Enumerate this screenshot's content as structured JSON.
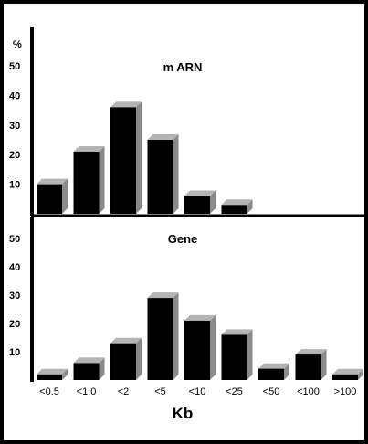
{
  "chart_data": [
    {
      "type": "bar",
      "title": "m ARN",
      "ylabel": "%",
      "ylim": [
        0,
        60
      ],
      "yticks": [
        10,
        20,
        30,
        40,
        50
      ],
      "categories": [
        "<0.5",
        "<1.0",
        "<2",
        "<5",
        "<10",
        "<25",
        "<50",
        "<100",
        ">100"
      ],
      "values": [
        10,
        21,
        36,
        25,
        6,
        3,
        0,
        0,
        0
      ]
    },
    {
      "type": "bar",
      "title": "Gene",
      "ylabel": "",
      "ylim": [
        0,
        60
      ],
      "yticks": [
        10,
        20,
        30,
        40,
        50
      ],
      "categories": [
        "<0.5",
        "<1.0",
        "<2",
        "<5",
        "<10",
        "<25",
        "<50",
        "<100",
        ">100"
      ],
      "values": [
        2,
        6,
        13,
        29,
        21,
        16,
        4,
        9,
        2
      ],
      "xlabel": "Kb"
    }
  ],
  "colors": {
    "bar": "#000000",
    "bar_side": "#8a8a8a",
    "bar_top": "#b4b4b4",
    "frame": "#000000",
    "panel": "#ffffff"
  }
}
